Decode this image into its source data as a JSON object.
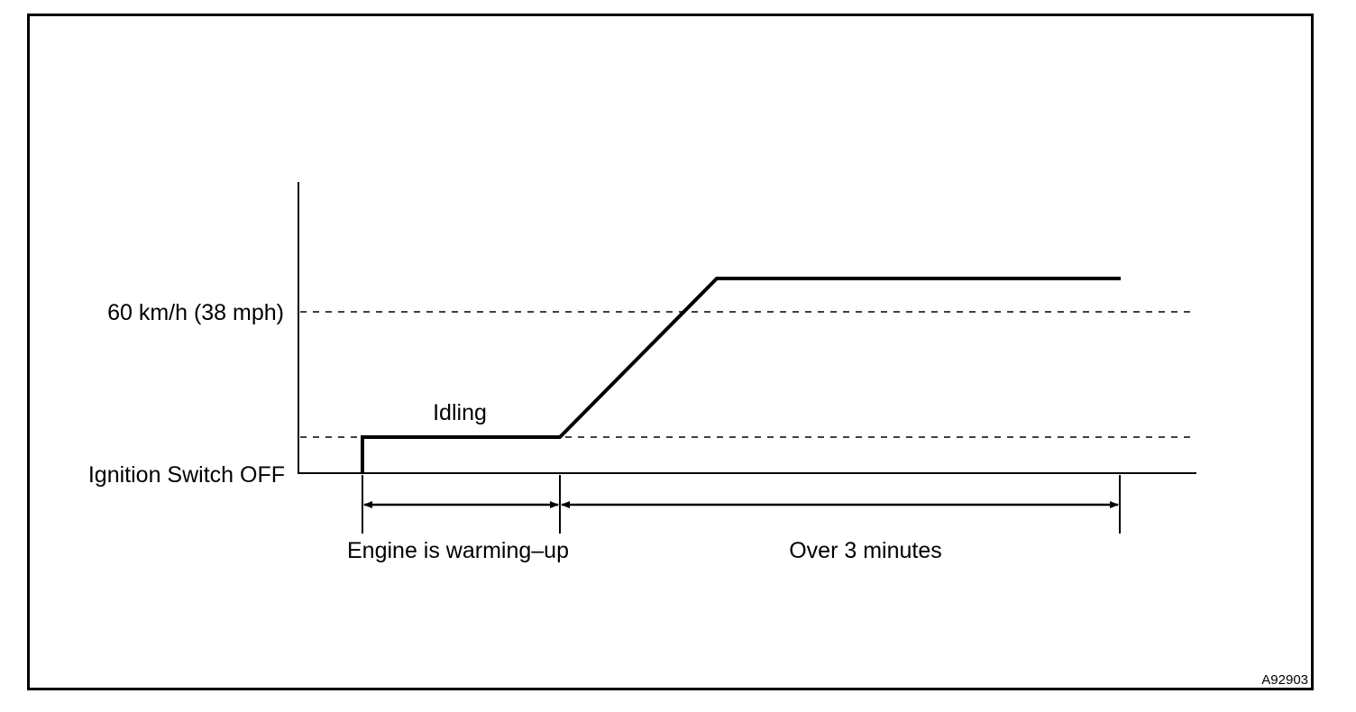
{
  "labels": {
    "speed_level": "60 km/h (38 mph)",
    "idling": "Idling",
    "ignition_off": "Ignition Switch OFF",
    "warm_up_period": "Engine is warming–up",
    "drive_period": "Over 3 minutes",
    "figure_ref": "A92903"
  },
  "colors": {
    "line": "#000000",
    "background": "#ffffff"
  }
}
